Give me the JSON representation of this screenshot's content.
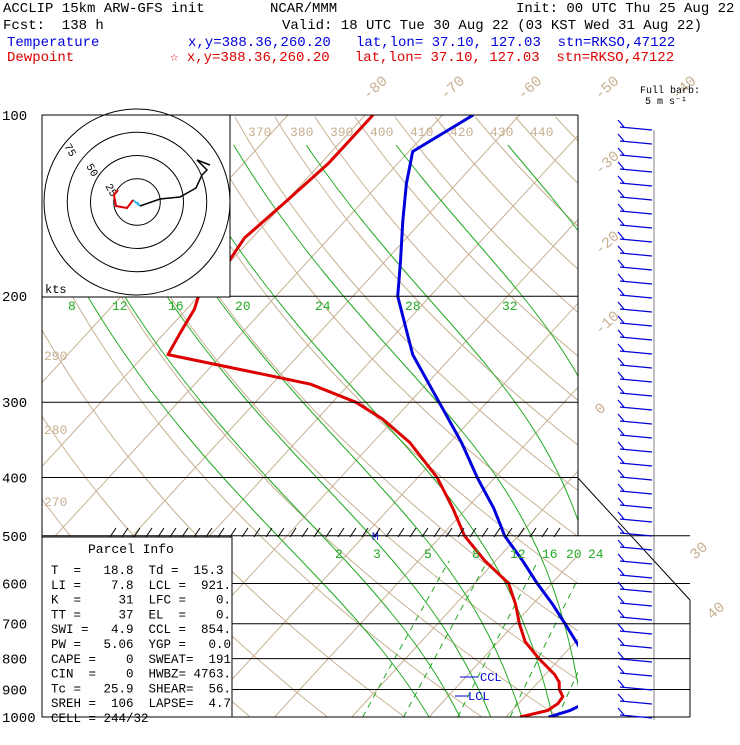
{
  "header": {
    "model": "ACCLIP 15km ARW-GFS init",
    "org": "NCAR/MMM",
    "init": "Init: 00 UTC Thu 25 Aug 22",
    "fcst": "Fcst:  138 h",
    "valid": "Valid: 18 UTC Tue 30 Aug 22 (03 KST Wed 31 Aug 22)",
    "temperature_label": "Temperature",
    "temperature_info": "x,y=388.36,260.20   lat,lon= 37.10, 127.03  stn=RKSO,47122",
    "dewpoint_label": "Dewpoint",
    "dewpoint_info": "☆ x,y=388.36,260.20   lat,lon= 37.10, 127.03  stn=RKSO,47122"
  },
  "barb_legend": {
    "line1": "Full barb:",
    "line2": "5 m s⁻¹"
  },
  "hodograph": {
    "units": "kts",
    "ring_labels": [
      "25",
      "50",
      "75"
    ]
  },
  "parcel_info": {
    "title": "Parcel Info",
    "rows": [
      "T  =   18.8  Td =  15.3",
      "LI =    7.8  LCL =  921.",
      "K  =     31  LFC =    0.",
      "TT =     37  EL  =    0.",
      "SWI =   4.9  CCL =  854.",
      "PW =   5.06  YGP =   0.0",
      "CAPE =    0  SWEAT=  191",
      "CIN  =    0  HWBZ= 4763.",
      "Tc =   25.9  SHEAR=  56.",
      "SREH =  106  LAPSE=  4.7",
      "CELL = 244/32"
    ]
  },
  "markers": {
    "ccl": "CCL",
    "lcl": "LCL",
    "m": "M"
  },
  "chart_data": {
    "type": "line",
    "diagram": "skew-T log-P",
    "y_axis": {
      "quantity": "pressure",
      "units": "hPa",
      "scale": "log",
      "range": [
        1000,
        100
      ],
      "ticks": [
        100,
        200,
        300,
        400,
        500,
        600,
        700,
        800,
        900,
        1000
      ]
    },
    "isotherm_labels_top": [
      "-80",
      "-70",
      "-60",
      "-50",
      "-40"
    ],
    "isotherm_labels_right": [
      "-30",
      "-20",
      "-10",
      "0",
      "30",
      "40"
    ],
    "theta_labels": [
      "370",
      "380",
      "390",
      "400",
      "410",
      "420",
      "430",
      "440",
      "290",
      "280",
      "270"
    ],
    "mixing_ratio_labels_200": [
      "8",
      "12",
      "16",
      "20",
      "24",
      "28",
      "32"
    ],
    "mixing_ratio_labels_550": [
      "2",
      "3",
      "5",
      "8",
      "12",
      "16",
      "20",
      "24"
    ],
    "series": [
      {
        "name": "Temperature",
        "color": "#0000dd",
        "p": [
          1000,
          975,
          950,
          925,
          900,
          875,
          850,
          800,
          750,
          700,
          650,
          600,
          550,
          500,
          480,
          450,
          420,
          400,
          350,
          300,
          250,
          200,
          175,
          150,
          130,
          115,
          100
        ],
        "t": [
          15.5,
          17.5,
          18.5,
          18.4,
          18.2,
          17.6,
          16.8,
          13.5,
          10.1,
          6.5,
          2.6,
          -1.9,
          -6.5,
          -11.8,
          -13.6,
          -16.5,
          -19.9,
          -22.3,
          -28.5,
          -36.2,
          -45.3,
          -54.2,
          -58.0,
          -62.5,
          -66.5,
          -69.5,
          -66.0
        ]
      },
      {
        "name": "Dewpoint",
        "color": "#dd0000",
        "p": [
          1000,
          975,
          950,
          925,
          900,
          875,
          850,
          800,
          750,
          700,
          650,
          600,
          550,
          500,
          450,
          400,
          350,
          320,
          300,
          280,
          270,
          250,
          230,
          210,
          200,
          180,
          160,
          140,
          120,
          100
        ],
        "t": [
          11.8,
          14.6,
          15.1,
          14.9,
          13.6,
          12.7,
          11.2,
          7.3,
          3.5,
          0.6,
          -2.2,
          -5.6,
          -11.4,
          -17.0,
          -21.8,
          -27.5,
          -35.2,
          -41.5,
          -47.0,
          -55.0,
          -62.0,
          -77.0,
          -78.0,
          -79.0,
          -80.0,
          -80.0,
          -81.0,
          -80.0,
          -79.0,
          -79.0
        ]
      }
    ]
  }
}
